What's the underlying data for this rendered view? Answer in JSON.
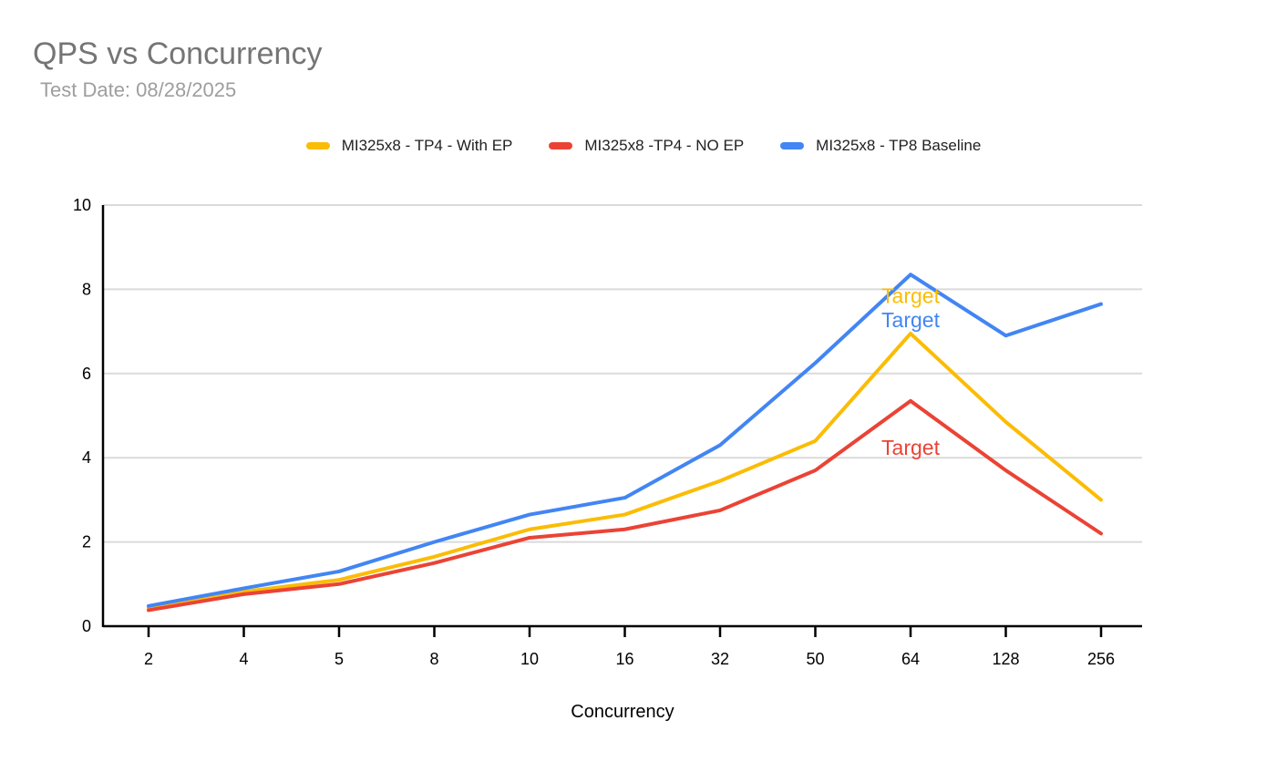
{
  "header": {
    "title": "QPS vs Concurrency",
    "subtitle": "Test Date: 08/28/2025"
  },
  "chart_data": {
    "type": "line",
    "title": "QPS vs Concurrency",
    "subtitle": "Test Date: 08/28/2025",
    "xlabel": "Concurrency",
    "ylabel": "",
    "grid": true,
    "legend_position": "top",
    "x_axis": {
      "categories": [
        "2",
        "4",
        "5",
        "8",
        "10",
        "16",
        "32",
        "50",
        "64",
        "128",
        "256"
      ]
    },
    "y_axis": {
      "min": 0,
      "max": 10,
      "ticks": [
        0,
        2,
        4,
        6,
        8,
        10
      ]
    },
    "series": [
      {
        "name": "MI325x8 - TP4 - With EP",
        "color": "#FBBC04",
        "values": [
          0.43,
          0.82,
          1.1,
          1.65,
          2.3,
          2.65,
          3.45,
          4.4,
          6.95,
          4.85,
          3.0
        ]
      },
      {
        "name": "MI325x8 -TP4 - NO EP",
        "color": "#EA4335",
        "values": [
          0.38,
          0.76,
          1.0,
          1.5,
          2.1,
          2.3,
          2.75,
          3.7,
          5.35,
          3.7,
          2.2
        ]
      },
      {
        "name": "MI325x8 - TP8 Baseline",
        "color": "#4285F4",
        "values": [
          0.48,
          0.9,
          1.3,
          2.0,
          2.65,
          3.05,
          4.3,
          6.25,
          8.35,
          6.9,
          7.65
        ]
      }
    ],
    "annotations": [
      {
        "label": "Target",
        "category": "64",
        "y": 7.85,
        "color": "#FBBC04"
      },
      {
        "label": "Target",
        "category": "64",
        "y": 7.27,
        "color": "#4285F4"
      },
      {
        "label": "Target",
        "category": "64",
        "y": 4.24,
        "color": "#EA4335"
      }
    ]
  }
}
